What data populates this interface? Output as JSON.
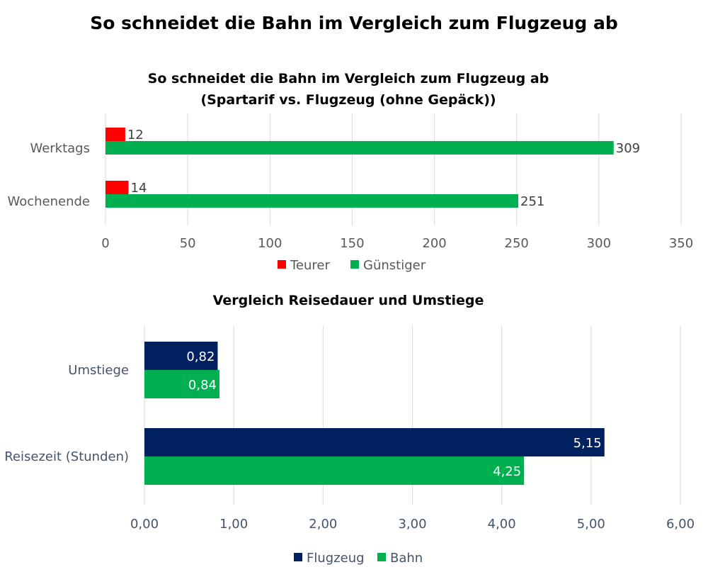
{
  "page": {
    "title": "So schneidet die Bahn im Vergleich zum Flugzeug ab"
  },
  "colors": {
    "red": "#ff0000",
    "green": "#00b050",
    "navy": "#002060",
    "grid": "#d9d9d9"
  },
  "chart_data": [
    {
      "type": "bar",
      "orientation": "horizontal",
      "title": "So schneidet die Bahn im Vergleich zum Flugzeug ab",
      "subtitle": "(Spartarif vs. Flugzeug (ohne Gepäck))",
      "categories": [
        "Werktags",
        "Wochenende"
      ],
      "series": [
        {
          "name": "Teurer",
          "values": [
            12,
            14
          ],
          "color": "#ff0000"
        },
        {
          "name": "Günstiger",
          "values": [
            309,
            251
          ],
          "color": "#00b050"
        }
      ],
      "xlim": [
        0,
        350
      ],
      "ticks": [
        "0",
        "50",
        "100",
        "150",
        "200",
        "250",
        "300",
        "350"
      ],
      "grid": true,
      "legend": "bottom"
    },
    {
      "type": "bar",
      "orientation": "horizontal",
      "title": "Vergleich Reisedauer und Umstiege",
      "categories": [
        "Umstiege",
        "Reisezeit (Stunden)"
      ],
      "series": [
        {
          "name": "Flugzeug",
          "values": [
            0.82,
            5.15
          ],
          "labels": [
            "0,82",
            "5,15"
          ],
          "color": "#002060"
        },
        {
          "name": "Bahn",
          "values": [
            0.84,
            4.25
          ],
          "labels": [
            "0,84",
            "4,25"
          ],
          "color": "#00b050"
        }
      ],
      "xlim": [
        0,
        6
      ],
      "ticks": [
        "0,00",
        "1,00",
        "2,00",
        "3,00",
        "4,00",
        "5,00",
        "6,00"
      ],
      "grid": true,
      "legend": "bottom"
    }
  ]
}
